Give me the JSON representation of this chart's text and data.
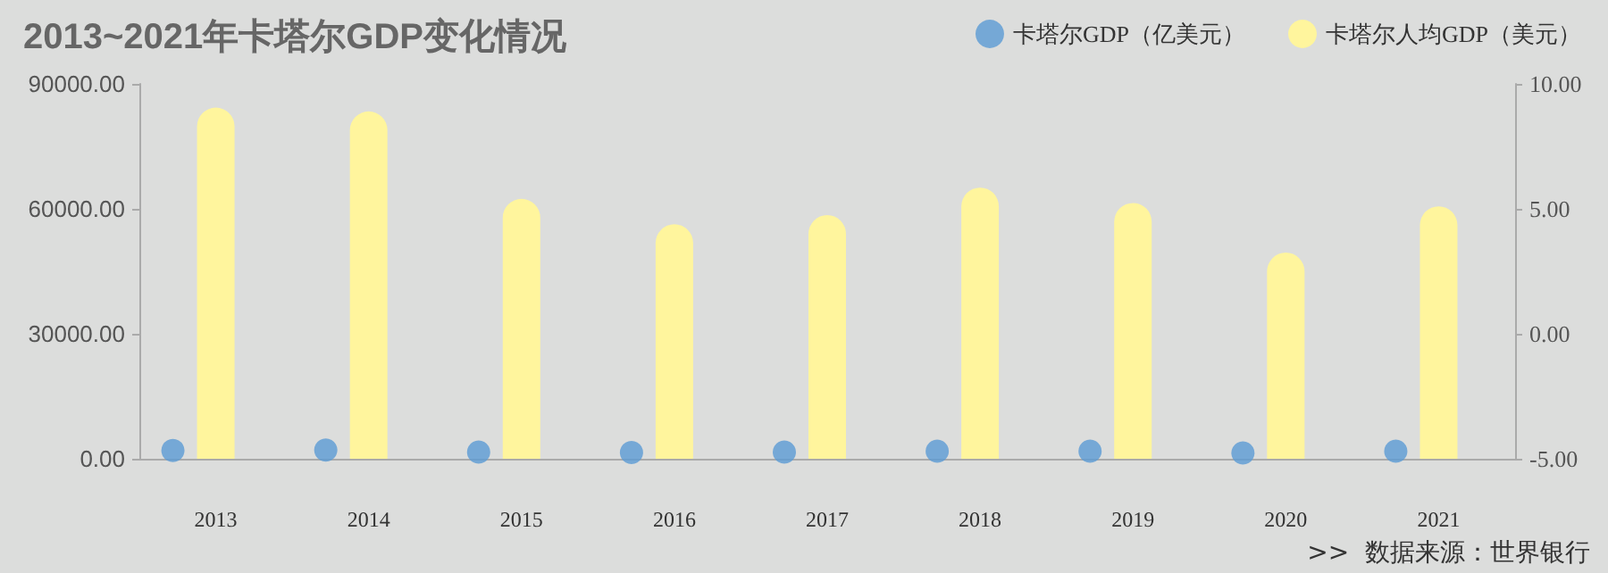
{
  "chart_data": {
    "type": "bar",
    "title": "2013~2021年卡塔尔GDP变化情况",
    "categories": [
      "2013",
      "2014",
      "2015",
      "2016",
      "2017",
      "2018",
      "2019",
      "2020",
      "2021"
    ],
    "series": [
      {
        "name": "卡塔尔GDP（亿美元）",
        "type": "scatter",
        "color": "#5b9bd5",
        "values": [
          2000,
          2100,
          1600,
          1500,
          1600,
          1800,
          1800,
          1400,
          1800
        ]
      },
      {
        "name": "卡塔尔人均GDP（美元）",
        "color": "#fff59d",
        "values": [
          84300,
          83400,
          62400,
          56300,
          58500,
          65100,
          61400,
          49500,
          60600
        ]
      }
    ],
    "ylim": [
      0,
      90000
    ],
    "yticks": [
      {
        "value": 0,
        "label": "0.00"
      },
      {
        "value": 30000,
        "label": "30000.00"
      },
      {
        "value": 60000,
        "label": "60000.00"
      },
      {
        "value": 90000,
        "label": "90000.00"
      }
    ],
    "y2lim": [
      -5,
      10
    ],
    "y2ticks": [
      {
        "value": -5,
        "label": "-5.00"
      },
      {
        "value": 0,
        "label": "0.00"
      },
      {
        "value": 5,
        "label": "5.00"
      },
      {
        "value": 10,
        "label": "10.00"
      }
    ],
    "annotations": [
      ">>  数据来源：世界银行"
    ],
    "legend": "top right",
    "grid": false,
    "marker": "circle"
  }
}
